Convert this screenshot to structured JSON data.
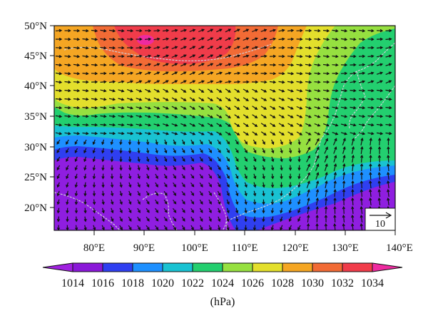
{
  "map": {
    "lat_labels": [
      "50°N",
      "45°N",
      "40°N",
      "35°N",
      "30°N",
      "25°N",
      "20°N"
    ],
    "lon_labels": [
      "80°E",
      "90°E",
      "100°E",
      "110°E",
      "120°E",
      "130°E",
      "140°E"
    ],
    "lat_range": [
      16,
      50
    ],
    "lon_range": [
      72,
      140
    ],
    "field": "sea level pressure with wind vectors",
    "reference_vector": {
      "label": "10",
      "magnitude": 10
    },
    "coastline_color": "#cfcfd6",
    "arrow_color": "#111111"
  },
  "colorbar": {
    "ticks": [
      "1014",
      "1016",
      "1018",
      "1020",
      "1022",
      "1024",
      "1026",
      "1028",
      "1030",
      "1032",
      "1034"
    ],
    "colors": [
      "#a020e0",
      "#8a18d8",
      "#2f3ff0",
      "#1e90ff",
      "#19c2d2",
      "#23cf6f",
      "#96e040",
      "#e3df2c",
      "#f5a623",
      "#f26b35",
      "#f03c4a",
      "#ee2aa0"
    ],
    "unit": "(hPa)"
  }
}
